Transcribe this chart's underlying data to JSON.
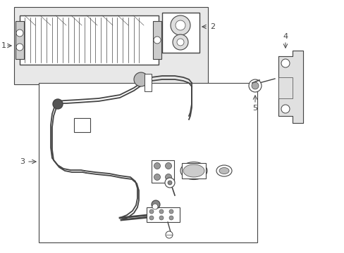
{
  "background_color": "#ffffff",
  "fig_width": 4.89,
  "fig_height": 3.6,
  "dpi": 100,
  "line_color": "#444444",
  "label_fontsize": 8,
  "shaded_bg": "#e8e8e8",
  "cooler_bg": "#d8d8d8"
}
